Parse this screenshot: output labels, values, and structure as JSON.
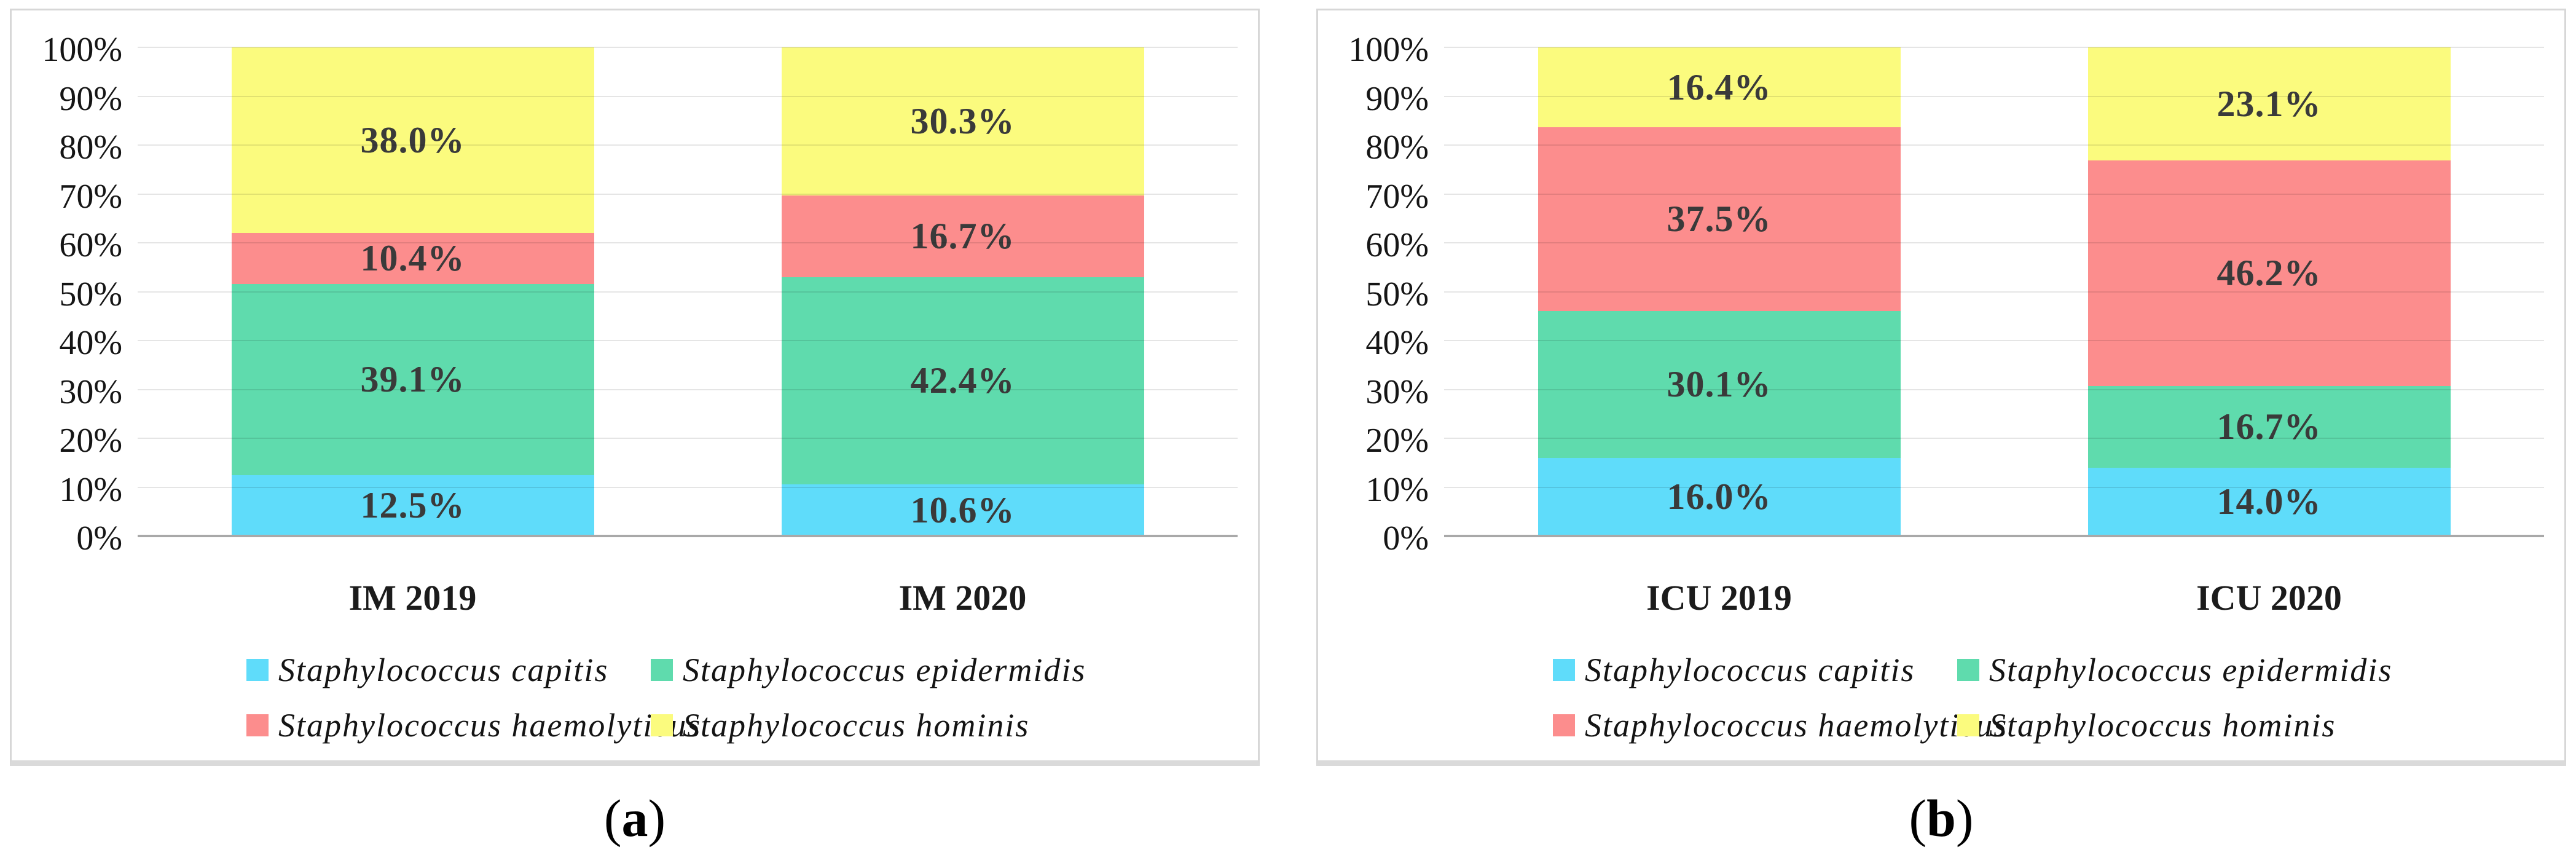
{
  "captions": {
    "a": {
      "open": "(",
      "letter": "a",
      "close": ")"
    },
    "b": {
      "open": "(",
      "letter": "b",
      "close": ")"
    }
  },
  "axis_colors": {
    "gridline": "rgba(0,0,0,0.10)",
    "baseline": "#a9a9a9"
  },
  "chart_data": [
    {
      "type": "bar",
      "subtype": "stacked-100-percent",
      "panel": "a",
      "categories": [
        "IM 2019",
        "IM 2020"
      ],
      "series": [
        {
          "name": "Staphylococcus capitis",
          "color": "#5fdcfa",
          "values": [
            12.5,
            10.6
          ]
        },
        {
          "name": "Staphylococcus epidermidis",
          "color": "#5fdbad",
          "values": [
            39.1,
            42.4
          ]
        },
        {
          "name": "Staphylococcus haemolyticus",
          "color": "#fc8d8d",
          "values": [
            10.4,
            16.7
          ]
        },
        {
          "name": "Staphylococcus hominis",
          "color": "#fbfb7e",
          "values": [
            38.0,
            30.3
          ]
        }
      ],
      "data_labels": [
        [
          "12.5%",
          "39.1%",
          "10.4%",
          "38.0%"
        ],
        [
          "10.6%",
          "42.4%",
          "16.7%",
          "30.3%"
        ]
      ],
      "y_ticks": [
        "100%",
        "90%",
        "80%",
        "70%",
        "60%",
        "50%",
        "40%",
        "30%",
        "20%",
        "10%",
        "0%"
      ],
      "ylim": [
        0,
        100
      ],
      "grid": true,
      "legend_position": "bottom"
    },
    {
      "type": "bar",
      "subtype": "stacked-100-percent",
      "panel": "b",
      "categories": [
        "ICU 2019",
        "ICU 2020"
      ],
      "series": [
        {
          "name": "Staphylococcus capitis",
          "color": "#5fdcfa",
          "values": [
            16.0,
            14.0
          ]
        },
        {
          "name": "Staphylococcus epidermidis",
          "color": "#5fdbad",
          "values": [
            30.1,
            16.7
          ]
        },
        {
          "name": "Staphylococcus haemolyticus",
          "color": "#fc8d8d",
          "values": [
            37.5,
            46.2
          ]
        },
        {
          "name": "Staphylococcus hominis",
          "color": "#fbfb7e",
          "values": [
            16.4,
            23.1
          ]
        }
      ],
      "data_labels": [
        [
          "16.0%",
          "30.1%",
          "37.5%",
          "16.4%"
        ],
        [
          "14.0%",
          "16.7%",
          "46.2%",
          "23.1%"
        ]
      ],
      "y_ticks": [
        "100%",
        "90%",
        "80%",
        "70%",
        "60%",
        "50%",
        "40%",
        "30%",
        "20%",
        "10%",
        "0%"
      ],
      "ylim": [
        0,
        100
      ],
      "grid": true,
      "legend_position": "bottom"
    }
  ]
}
